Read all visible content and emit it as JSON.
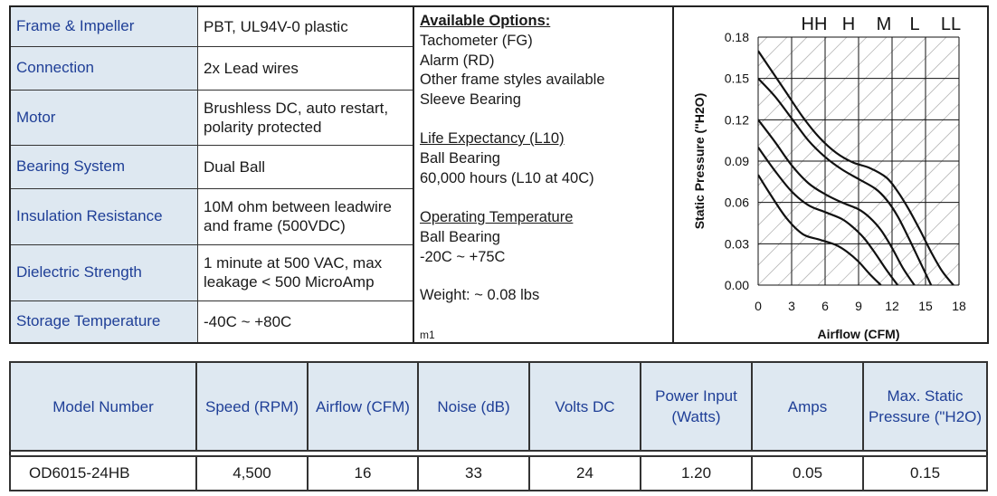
{
  "specs": [
    {
      "label": "Frame & Impeller",
      "value": "PBT, UL94V-0 plastic"
    },
    {
      "label": "Connection",
      "value": "2x Lead wires"
    },
    {
      "label": "Motor",
      "value_lines": [
        "Brushless DC, auto restart,",
        "polarity  protected"
      ]
    },
    {
      "label": "Bearing System",
      "value": "Dual Ball"
    },
    {
      "label": "Insulation Resistance",
      "value_lines": [
        "10M ohm between leadwire",
        "and frame (500VDC)"
      ]
    },
    {
      "label": "Dielectric Strength",
      "value_lines": [
        "1 minute at 500 VAC, max",
        "leakage < 500 MicroAmp"
      ]
    },
    {
      "label": "Storage Temperature",
      "value": "-40C ~ +80C"
    }
  ],
  "options": {
    "available_heading": "Available Options:",
    "available_items": [
      "Tachometer (FG)",
      "Alarm (RD)",
      "Other frame styles available",
      "Sleeve Bearing"
    ],
    "life_heading": "Life Expectancy (L10)",
    "life_items": [
      "Ball Bearing",
      "60,000 hours (L10 at 40C)"
    ],
    "temp_heading": "Operating Temperature",
    "temp_items": [
      "Ball Bearing",
      "-20C ~ +75C"
    ],
    "weight": "Weight: ~ 0.08 lbs",
    "code": "m1"
  },
  "chart_data": {
    "type": "line",
    "xlabel": "Airflow (CFM)",
    "ylabel": "Static Pressure (\"H2O)",
    "xlim": [
      0,
      18
    ],
    "ylim": [
      0,
      0.18
    ],
    "x_ticks": [
      "0",
      "3",
      "6",
      "9",
      "12",
      "15",
      "18"
    ],
    "y_ticks": [
      "0.00",
      "0.03",
      "0.06",
      "0.09",
      "0.12",
      "0.15",
      "0.18"
    ],
    "speed_labels": [
      "HH",
      "H",
      "M",
      "L",
      "LL"
    ],
    "grid": true,
    "series": [
      {
        "x": [
          0,
          1,
          2.5,
          4,
          5.5,
          7,
          8.5,
          10,
          11.5,
          12.5,
          13.5,
          14.5,
          15.5,
          16.5,
          17.5
        ],
        "y": [
          0.17,
          0.158,
          0.14,
          0.122,
          0.107,
          0.096,
          0.089,
          0.085,
          0.078,
          0.068,
          0.055,
          0.04,
          0.024,
          0.01,
          0
        ]
      },
      {
        "x": [
          0,
          1.5,
          3,
          4.5,
          6,
          7.5,
          9,
          10.5,
          11.5,
          12.5,
          13.5,
          14.5,
          15.5
        ],
        "y": [
          0.15,
          0.137,
          0.121,
          0.105,
          0.093,
          0.084,
          0.077,
          0.07,
          0.062,
          0.05,
          0.034,
          0.017,
          0
        ]
      },
      {
        "x": [
          0,
          1.5,
          3,
          4.5,
          6,
          7.5,
          9,
          10,
          11,
          12,
          13,
          14
        ],
        "y": [
          0.12,
          0.104,
          0.087,
          0.074,
          0.066,
          0.06,
          0.055,
          0.049,
          0.04,
          0.027,
          0.012,
          0
        ]
      },
      {
        "x": [
          0,
          1.5,
          3,
          4.5,
          6,
          7.5,
          8.5,
          9.5,
          10.5,
          11.5,
          12.5
        ],
        "y": [
          0.1,
          0.083,
          0.068,
          0.058,
          0.053,
          0.048,
          0.042,
          0.034,
          0.023,
          0.011,
          0
        ]
      },
      {
        "x": [
          0,
          1,
          2.5,
          4,
          5.5,
          7,
          8,
          9,
          10,
          11
        ],
        "y": [
          0.08,
          0.067,
          0.049,
          0.037,
          0.033,
          0.029,
          0.024,
          0.017,
          0.008,
          0
        ]
      }
    ]
  },
  "model_table": {
    "headers": [
      "Model Number",
      "Speed (RPM)",
      "Airflow (CFM)",
      "Noise (dB)",
      "Volts DC",
      "Power Input (Watts)",
      "Amps",
      "Max. Static Pressure (\"H2O)"
    ],
    "rows": [
      [
        "OD6015-24HB",
        "4,500",
        "16",
        "33",
        "24",
        "1.20",
        "0.05",
        "0.15"
      ]
    ]
  }
}
